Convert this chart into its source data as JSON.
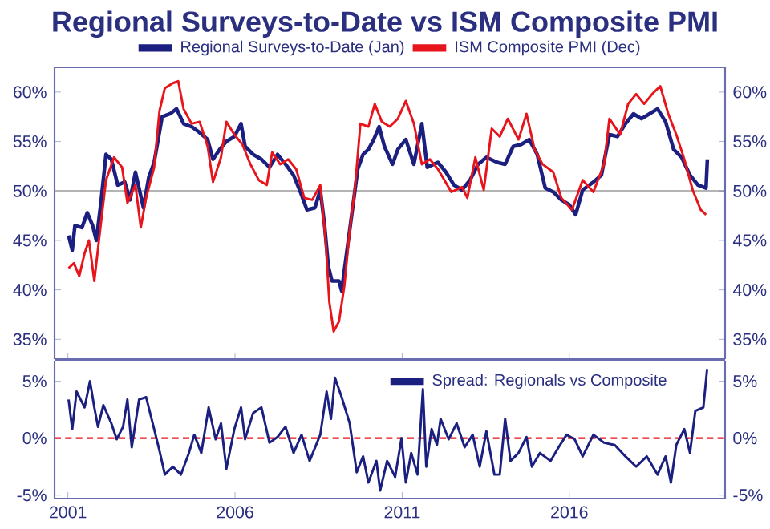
{
  "chart_data": [
    {
      "type": "line",
      "title": "Regional Surveys-to-Date vs ISM Composite PMI",
      "xlim": [
        2000.6,
        2020.66
      ],
      "xticks": [
        2001,
        2006,
        2011,
        2016
      ],
      "ylim": [
        33,
        62.5
      ],
      "yticks": [
        {
          "value": 35,
          "label": "35%"
        },
        {
          "value": 40,
          "label": "40%"
        },
        {
          "value": 45,
          "label": "45%"
        },
        {
          "value": 50,
          "label": "50%"
        },
        {
          "value": 55,
          "label": "55%"
        },
        {
          "value": 60,
          "label": "60%"
        }
      ],
      "y2lim": [
        33,
        62.5
      ],
      "y2ticks": [
        {
          "value": 35,
          "label": "35%"
        },
        {
          "value": 40,
          "label": "40%"
        },
        {
          "value": 45,
          "label": "45%"
        },
        {
          "value": 50,
          "label": "50%"
        },
        {
          "value": 55,
          "label": "55%"
        },
        {
          "value": 60,
          "label": "60%"
        }
      ],
      "tick_labels": "y",
      "legend": "top",
      "ref_lines": [
        {
          "axis": "y",
          "value": 50,
          "color": "#b4b4b4"
        }
      ],
      "series": [
        {
          "name": "Regional Surveys-to-Date (Jan)",
          "color": "#1a1f80",
          "x": [
            2001.02,
            2001.13,
            2001.21,
            2001.42,
            2001.58,
            2001.74,
            2001.85,
            2001.98,
            2002.14,
            2002.3,
            2002.49,
            2002.7,
            2002.86,
            2003.02,
            2003.26,
            2003.42,
            2003.58,
            2003.82,
            2004.06,
            2004.25,
            2004.46,
            2004.7,
            2004.94,
            2005.18,
            2005.34,
            2005.54,
            2005.74,
            2005.98,
            2006.18,
            2006.3,
            2006.54,
            2006.79,
            2007.03,
            2007.27,
            2007.51,
            2007.75,
            2007.99,
            2008.15,
            2008.39,
            2008.55,
            2008.68,
            2008.79,
            2008.9,
            2009.11,
            2009.19,
            2009.35,
            2009.51,
            2009.67,
            2009.83,
            2009.99,
            2010.15,
            2010.31,
            2010.47,
            2010.71,
            2010.87,
            2011.11,
            2011.35,
            2011.59,
            2011.75,
            2012.07,
            2012.31,
            2012.55,
            2012.79,
            2013.03,
            2013.27,
            2013.52,
            2013.84,
            2014.08,
            2014.32,
            2014.56,
            2014.8,
            2015.04,
            2015.28,
            2015.52,
            2015.76,
            2016.0,
            2016.19,
            2016.4,
            2016.72,
            2016.96,
            2017.2,
            2017.44,
            2017.68,
            2017.92,
            2018.16,
            2018.4,
            2018.64,
            2018.88,
            2019.12,
            2019.36,
            2019.61,
            2019.85,
            2020.09,
            2020.13
          ],
          "values": [
            45.5,
            44.0,
            46.5,
            46.3,
            47.8,
            46.5,
            45.0,
            48.6,
            53.7,
            53.2,
            50.6,
            50.9,
            49.1,
            51.9,
            48.3,
            51.4,
            52.9,
            57.5,
            57.8,
            58.3,
            56.8,
            56.5,
            55.9,
            55.2,
            53.2,
            54.2,
            55.0,
            55.5,
            56.8,
            54.5,
            53.7,
            53.2,
            52.4,
            53.7,
            52.7,
            51.6,
            49.6,
            48.1,
            48.3,
            50.1,
            46.5,
            42.4,
            40.9,
            40.9,
            39.9,
            44.0,
            48.1,
            52.2,
            53.7,
            54.2,
            55.2,
            56.5,
            54.5,
            52.7,
            54.2,
            55.2,
            52.7,
            56.8,
            52.4,
            52.9,
            51.9,
            50.6,
            50.1,
            51.1,
            52.7,
            53.4,
            52.9,
            52.7,
            54.5,
            54.7,
            55.2,
            53.7,
            50.3,
            49.9,
            49.1,
            48.6,
            47.6,
            50.1,
            50.9,
            51.6,
            55.7,
            55.5,
            56.8,
            57.8,
            57.3,
            57.8,
            58.3,
            57.0,
            54.2,
            53.4,
            51.6,
            50.6,
            50.3,
            53.2
          ]
        },
        {
          "name": "ISM Composite PMI (Dec)",
          "color": "#e8141b",
          "x": [
            2001.02,
            2001.18,
            2001.34,
            2001.5,
            2001.63,
            2001.79,
            2001.98,
            2002.14,
            2002.38,
            2002.62,
            2002.78,
            2003.02,
            2003.18,
            2003.34,
            2003.58,
            2003.74,
            2003.9,
            2004.14,
            2004.3,
            2004.46,
            2004.7,
            2004.94,
            2005.18,
            2005.34,
            2005.58,
            2005.74,
            2005.98,
            2006.22,
            2006.46,
            2006.71,
            2006.95,
            2007.11,
            2007.35,
            2007.59,
            2007.83,
            2008.07,
            2008.31,
            2008.55,
            2008.71,
            2008.82,
            2008.95,
            2009.11,
            2009.27,
            2009.43,
            2009.59,
            2009.75,
            2009.99,
            2010.18,
            2010.39,
            2010.63,
            2010.87,
            2011.11,
            2011.35,
            2011.59,
            2011.83,
            2012.07,
            2012.47,
            2012.79,
            2012.95,
            2013.19,
            2013.44,
            2013.68,
            2013.92,
            2014.16,
            2014.48,
            2014.72,
            2014.96,
            2015.2,
            2015.52,
            2015.76,
            2016.08,
            2016.4,
            2016.72,
            2017.04,
            2017.2,
            2017.52,
            2017.76,
            2018.0,
            2018.24,
            2018.48,
            2018.72,
            2018.96,
            2019.2,
            2019.44,
            2019.69,
            2019.93,
            2020.09
          ],
          "values": [
            42.2,
            42.7,
            41.4,
            43.7,
            45.0,
            40.9,
            46.5,
            51.1,
            53.4,
            52.4,
            48.8,
            50.6,
            46.3,
            49.3,
            52.4,
            58.1,
            60.4,
            60.9,
            61.1,
            58.3,
            56.8,
            57.0,
            54.5,
            50.9,
            53.4,
            57.0,
            55.7,
            54.7,
            52.7,
            51.1,
            50.6,
            53.9,
            52.7,
            53.2,
            52.2,
            49.3,
            49.1,
            50.6,
            45.0,
            38.8,
            35.8,
            36.8,
            40.4,
            46.0,
            50.4,
            56.8,
            56.5,
            58.8,
            57.0,
            56.5,
            57.3,
            59.1,
            56.8,
            52.7,
            53.2,
            52.2,
            49.9,
            50.4,
            49.3,
            53.4,
            50.1,
            56.3,
            55.5,
            57.3,
            55.2,
            57.8,
            54.2,
            52.7,
            51.9,
            49.3,
            48.1,
            51.1,
            49.9,
            52.7,
            57.3,
            55.7,
            58.8,
            59.8,
            58.8,
            59.8,
            60.6,
            57.8,
            55.7,
            53.2,
            50.1,
            48.1,
            47.6
          ]
        }
      ]
    },
    {
      "type": "line",
      "xlim": [
        2000.6,
        2020.66
      ],
      "xticks": [
        2001,
        2006,
        2011,
        2016
      ],
      "ylim": [
        -5.3,
        6.8
      ],
      "yticks": [
        {
          "value": -5,
          "label": "-5%"
        },
        {
          "value": 0,
          "label": "0%"
        },
        {
          "value": 5,
          "label": "5%"
        }
      ],
      "y2lim": [
        -5.3,
        6.8
      ],
      "y2ticks": [
        {
          "value": -5,
          "label": "-5%"
        },
        {
          "value": 0,
          "label": "0%"
        },
        {
          "value": 5,
          "label": "5%"
        }
      ],
      "legend": "top right",
      "ref_lines": [
        {
          "axis": "y",
          "value": 0,
          "color": "#e8141b",
          "line_style": "dotted"
        }
      ],
      "series": [
        {
          "name": "Spread: Regionals vs Composite",
          "color": "#1a1f80",
          "x": [
            2001.02,
            2001.13,
            2001.26,
            2001.5,
            2001.66,
            2001.79,
            2001.9,
            2002.06,
            2002.3,
            2002.46,
            2002.65,
            2002.78,
            2002.91,
            2003.13,
            2003.34,
            2003.58,
            2003.74,
            2003.9,
            2004.14,
            2004.38,
            2004.62,
            2004.78,
            2004.99,
            2005.21,
            2005.42,
            2005.58,
            2005.74,
            2005.98,
            2006.18,
            2006.3,
            2006.54,
            2006.79,
            2007.03,
            2007.27,
            2007.51,
            2007.75,
            2007.99,
            2008.23,
            2008.55,
            2008.74,
            2008.87,
            2008.99,
            2009.19,
            2009.43,
            2009.64,
            2009.83,
            2009.99,
            2010.23,
            2010.34,
            2010.55,
            2010.79,
            2010.98,
            2011.11,
            2011.27,
            2011.46,
            2011.62,
            2011.72,
            2011.88,
            2012.04,
            2012.15,
            2012.39,
            2012.63,
            2012.87,
            2013.11,
            2013.32,
            2013.52,
            2013.76,
            2013.92,
            2014.08,
            2014.24,
            2014.48,
            2014.72,
            2014.88,
            2015.12,
            2015.44,
            2015.68,
            2015.92,
            2016.16,
            2016.4,
            2016.72,
            2017.04,
            2017.36,
            2017.68,
            2018.0,
            2018.32,
            2018.64,
            2018.88,
            2019.04,
            2019.2,
            2019.44,
            2019.61,
            2019.77,
            2020.01,
            2020.12
          ],
          "values": [
            3.4,
            0.8,
            4.1,
            2.7,
            5.0,
            2.7,
            1.0,
            2.9,
            1.3,
            -0.1,
            1.0,
            3.4,
            -0.8,
            3.4,
            3.6,
            0.8,
            -1.1,
            -3.2,
            -2.5,
            -3.2,
            -1.3,
            0.3,
            -1.3,
            2.7,
            -0.1,
            1.3,
            -2.7,
            0.8,
            2.7,
            -0.1,
            2.2,
            2.7,
            -0.4,
            0.1,
            1.0,
            -1.3,
            0.3,
            -2.0,
            0.3,
            4.1,
            1.7,
            5.3,
            3.6,
            1.3,
            -3.0,
            -1.6,
            -3.9,
            -2.0,
            -4.6,
            -2.0,
            -3.4,
            0.0,
            -3.9,
            -1.3,
            -3.2,
            4.3,
            -2.5,
            0.8,
            -0.6,
            1.7,
            -0.1,
            1.3,
            -0.8,
            0.3,
            -2.5,
            0.6,
            -3.2,
            -3.2,
            1.7,
            -2.0,
            -1.3,
            0.1,
            -2.5,
            -1.3,
            -2.0,
            -0.8,
            0.3,
            -0.1,
            -1.6,
            0.3,
            -0.4,
            -0.6,
            -1.6,
            -2.5,
            -1.6,
            -3.2,
            -1.6,
            -3.9,
            -0.6,
            0.8,
            -1.3,
            2.4,
            2.7,
            6.0
          ]
        }
      ]
    }
  ]
}
